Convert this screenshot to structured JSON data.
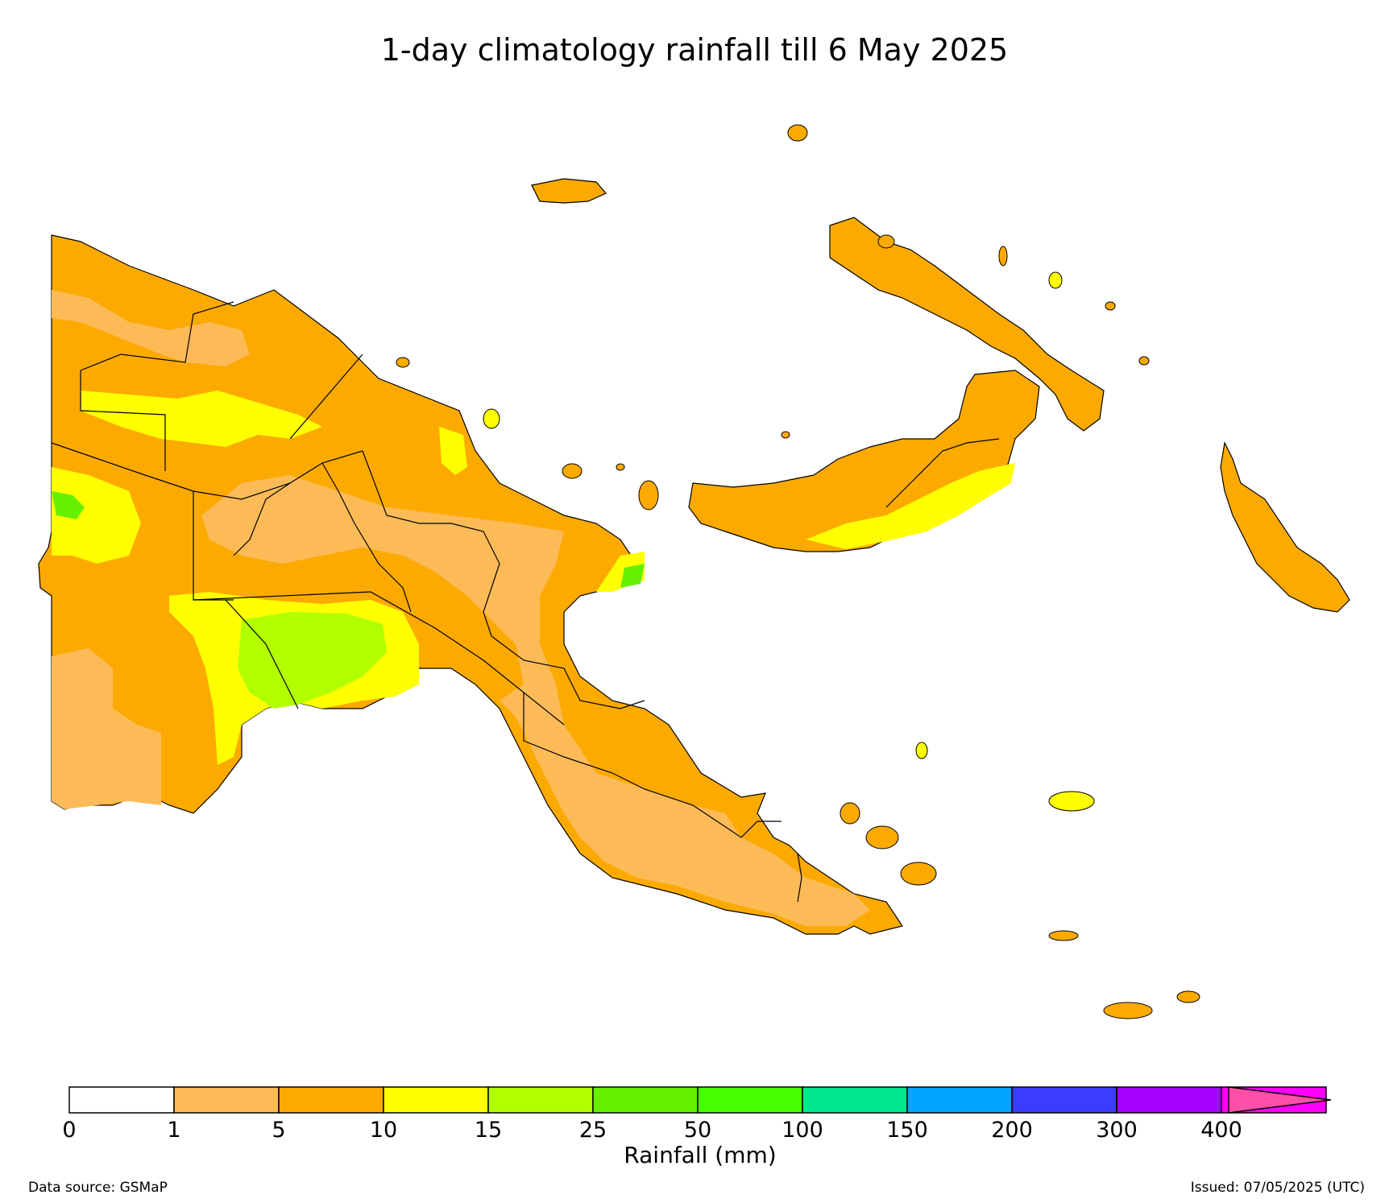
{
  "title": "1-day climatology rainfall till 6 May 2025",
  "colorbar": {
    "label": "Rainfall (mm)",
    "ticks": [
      "0",
      "1",
      "5",
      "10",
      "15",
      "25",
      "50",
      "100",
      "150",
      "200",
      "300",
      "400"
    ],
    "colors": [
      "#ffffff",
      "#fdbb58",
      "#fdaa00",
      "#ffff00",
      "#b2ff00",
      "#64f000",
      "#47ff00",
      "#00e68c",
      "#00a5ff",
      "#3c3cff",
      "#a500ff",
      "#ff00ff"
    ],
    "extend_color": "#ff4fa8"
  },
  "legend_colors": {
    "1-5": "#fdbb58",
    "5-10": "#fdaa00",
    "10-15": "#ffff00",
    "15-25": "#b2ff00",
    "25-50": "#64f000"
  },
  "footer": {
    "source": "Data source: GSMaP",
    "issued": "Issued: 07/05/2025 (UTC)"
  }
}
